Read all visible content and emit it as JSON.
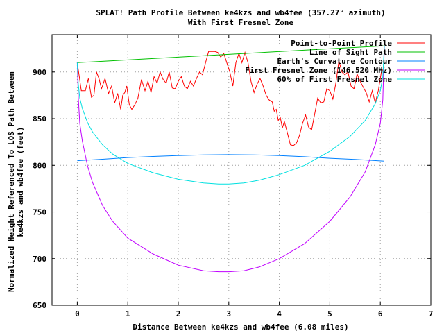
{
  "chart_data": {
    "type": "line",
    "title": [
      "SPLAT! Path Profile Between ke4kzs and wb4fee (357.27° azimuth)",
      "With First Fresnel Zone"
    ],
    "xlabel": "Distance Between ke4kzs and wb4fee (6.08 miles)",
    "ylabel": [
      "Normalized Height Referenced To LOS Path Between",
      "ke4kzs and wb4fee (feet)"
    ],
    "xlim": [
      -0.5,
      7
    ],
    "ylim": [
      650,
      940
    ],
    "xticks": [
      0,
      1,
      2,
      3,
      4,
      5,
      6,
      7
    ],
    "yticks": [
      650,
      700,
      750,
      800,
      850,
      900
    ],
    "grid": true,
    "legend": "top-right",
    "series": [
      {
        "name": "Point-to-Point Profile",
        "color": "#ff0000",
        "x": [
          0.0,
          0.08,
          0.16,
          0.22,
          0.28,
          0.33,
          0.38,
          0.43,
          0.48,
          0.55,
          0.62,
          0.68,
          0.74,
          0.8,
          0.86,
          0.9,
          0.94,
          0.98,
          1.03,
          1.08,
          1.14,
          1.2,
          1.27,
          1.34,
          1.4,
          1.46,
          1.52,
          1.58,
          1.64,
          1.7,
          1.76,
          1.82,
          1.88,
          1.94,
          2.0,
          2.06,
          2.12,
          2.18,
          2.24,
          2.3,
          2.36,
          2.42,
          2.48,
          2.54,
          2.6,
          2.66,
          2.72,
          2.78,
          2.84,
          2.9,
          2.96,
          3.02,
          3.08,
          3.14,
          3.2,
          3.26,
          3.32,
          3.38,
          3.44,
          3.5,
          3.56,
          3.62,
          3.68,
          3.74,
          3.8,
          3.86,
          3.9,
          3.94,
          3.98,
          4.02,
          4.06,
          4.1,
          4.16,
          4.22,
          4.28,
          4.34,
          4.4,
          4.46,
          4.52,
          4.58,
          4.64,
          4.7,
          4.76,
          4.82,
          4.88,
          4.94,
          5.0,
          5.06,
          5.12,
          5.18,
          5.24,
          5.3,
          5.36,
          5.42,
          5.48,
          5.54,
          5.6,
          5.66,
          5.72,
          5.78,
          5.84,
          5.9,
          5.96,
          6.02,
          6.08
        ],
        "y": [
          910,
          880,
          880,
          893,
          873,
          875,
          900,
          893,
          882,
          893,
          877,
          885,
          867,
          877,
          860,
          875,
          878,
          885,
          865,
          860,
          865,
          872,
          892,
          880,
          890,
          878,
          895,
          888,
          900,
          892,
          888,
          900,
          883,
          882,
          890,
          895,
          885,
          882,
          890,
          885,
          893,
          900,
          897,
          910,
          922,
          922,
          922,
          921,
          916,
          920,
          910,
          900,
          885,
          910,
          920,
          910,
          921,
          910,
          890,
          878,
          887,
          893,
          885,
          875,
          870,
          868,
          858,
          860,
          848,
          851,
          840,
          847,
          835,
          822,
          821,
          824,
          832,
          845,
          854,
          841,
          838,
          855,
          872,
          867,
          868,
          882,
          880,
          871,
          888,
          912,
          900,
          897,
          900,
          885,
          882,
          898,
          890,
          884,
          878,
          868,
          880,
          867,
          880,
          900,
          905
        ]
      },
      {
        "name": "Line of Sight Path",
        "color": "#00c000",
        "x": [
          0,
          6.08
        ],
        "y": [
          910,
          928
        ]
      },
      {
        "name": "Earth's Curvature Contour",
        "color": "#0080ff",
        "x": [
          0,
          0.5,
          1,
          1.5,
          2,
          2.5,
          3,
          3.5,
          4,
          4.5,
          5,
          5.5,
          6.08
        ],
        "y": [
          805,
          806.5,
          808.3,
          809.5,
          810.5,
          811.1,
          811.4,
          811.2,
          810.5,
          809.2,
          807.6,
          806.3,
          804.5
        ]
      },
      {
        "name": "First Fresnel Zone (146.520 MHz)",
        "color": "#c000ff",
        "x": [
          0,
          0.02,
          0.05,
          0.1,
          0.2,
          0.3,
          0.5,
          0.7,
          1,
          1.5,
          2,
          2.5,
          2.8,
          3.0,
          3.3,
          3.6,
          4,
          4.5,
          5,
          5.4,
          5.7,
          5.9,
          6.0,
          6.05,
          6.08
        ],
        "y": [
          910,
          872,
          845,
          826,
          800,
          782,
          757,
          740,
          722,
          705,
          693,
          687,
          686,
          686,
          687,
          691,
          700,
          716,
          740,
          766,
          793,
          822,
          845,
          870,
          928
        ]
      },
      {
        "name": "60% of First Fresnel Zone",
        "color": "#00e0e0",
        "x": [
          0,
          0.02,
          0.05,
          0.1,
          0.2,
          0.3,
          0.5,
          0.7,
          1,
          1.5,
          2,
          2.5,
          2.8,
          3.0,
          3.3,
          3.6,
          4,
          4.5,
          5,
          5.4,
          5.7,
          5.9,
          6.0,
          6.05,
          6.08
        ],
        "y": [
          910,
          887,
          872,
          861,
          846,
          836,
          822,
          812,
          802,
          792,
          785,
          781,
          780,
          780,
          781,
          784,
          790,
          800,
          815,
          831,
          848,
          866,
          880,
          895,
          928
        ]
      }
    ]
  }
}
